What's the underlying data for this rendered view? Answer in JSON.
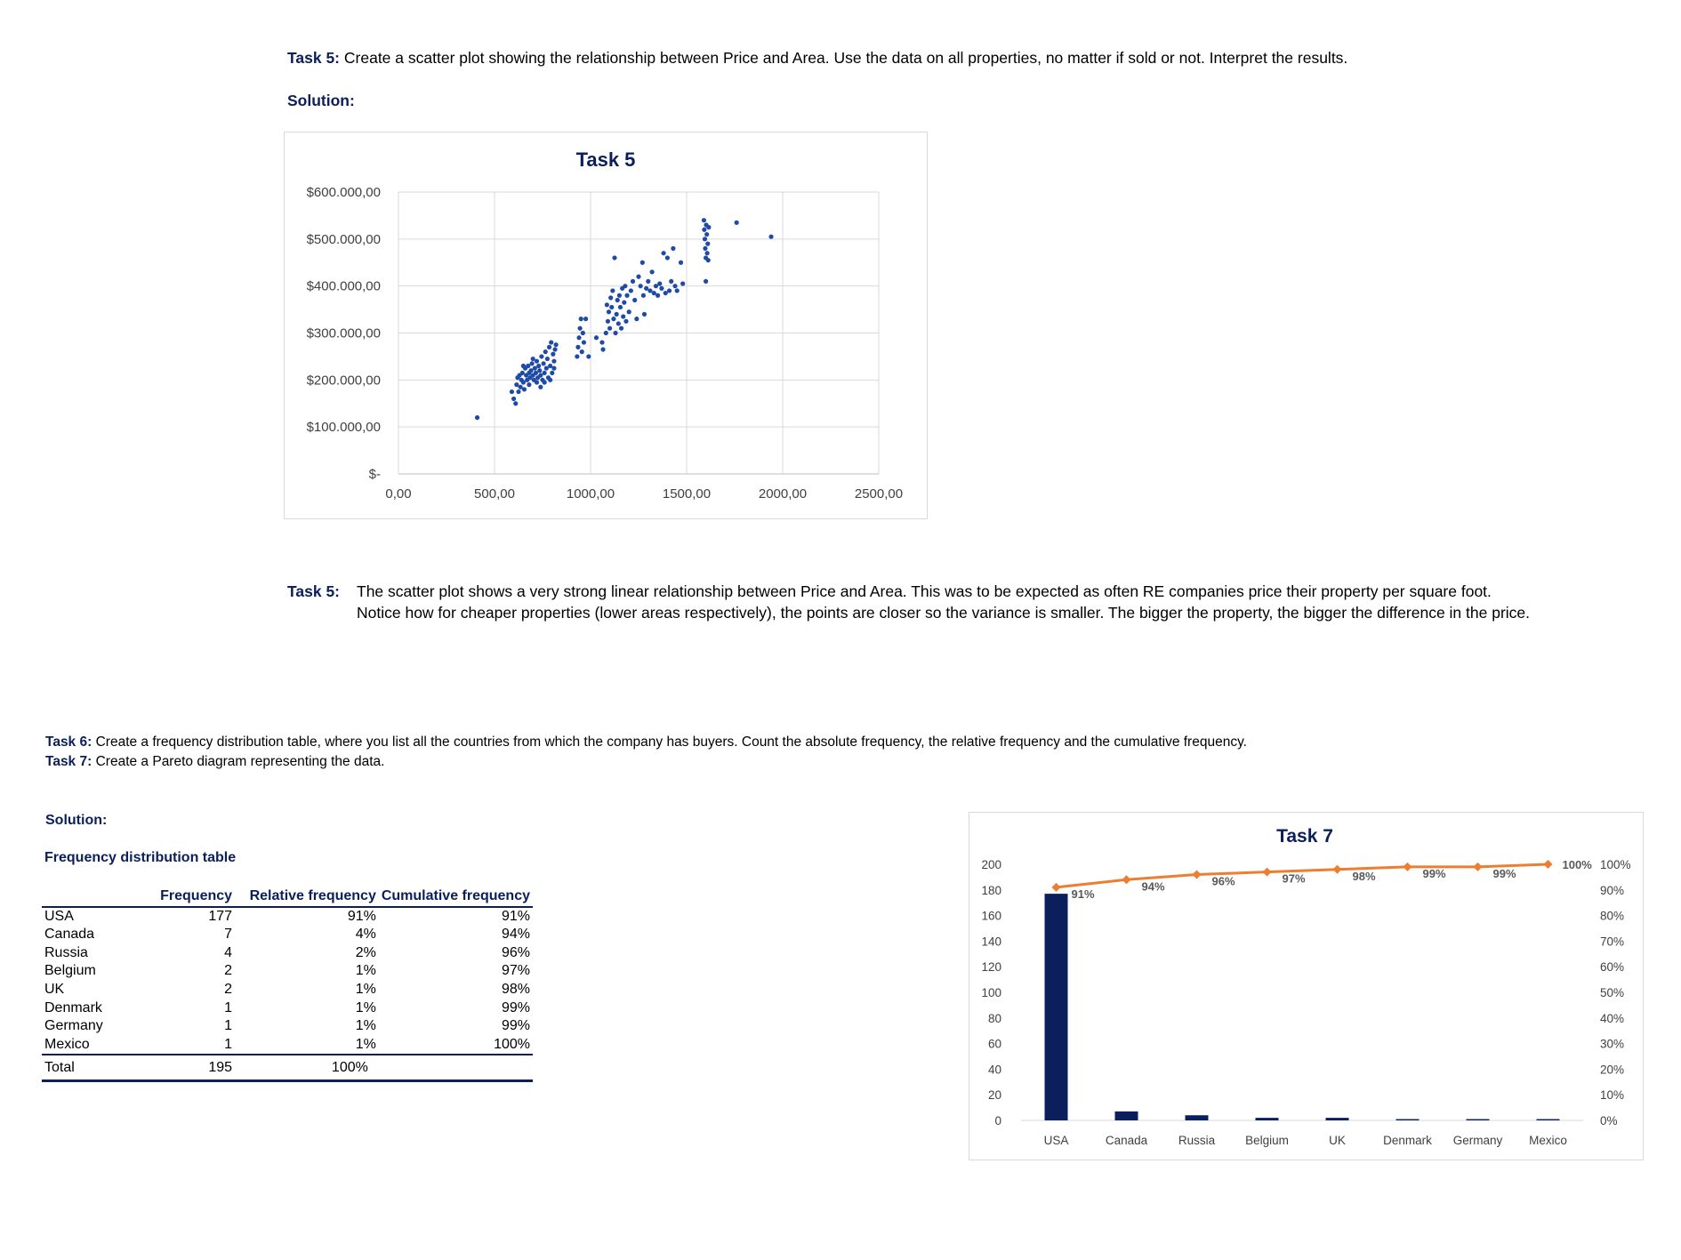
{
  "task5": {
    "label": "Task 5:",
    "text": "Create a scatter plot showing the relationship between Price and Area. Use the data on all properties, no matter if sold or not. Interpret the results.",
    "solution_label": "Solution:",
    "interp_label": "Task 5:",
    "interp_line1": "The scatter plot shows a very strong linear relationship between Price and Area. This was to be expected as often RE companies price their property per square foot.",
    "interp_line2": "Notice how for cheaper properties (lower areas respectively), the points are closer so the variance is smaller. The bigger the property, the bigger the difference in the price."
  },
  "task6": {
    "label": "Task 6:",
    "text": "Create a frequency distribution table, where you list all the countries from which the company has buyers. Count the absolute frequency, the relative frequency and the cumulative frequency."
  },
  "task7": {
    "label": "Task 7:",
    "text": "Create a Pareto diagram representing the data."
  },
  "solution2_label": "Solution:",
  "freq_table": {
    "title": "Frequency distribution table",
    "headers": [
      "",
      "Frequency",
      "Relative frequency",
      "Cumulative frequency"
    ],
    "rows": [
      [
        "USA",
        "177",
        "91%",
        "91%"
      ],
      [
        "Canada",
        "7",
        "4%",
        "94%"
      ],
      [
        "Russia",
        "4",
        "2%",
        "96%"
      ],
      [
        "Belgium",
        "2",
        "1%",
        "97%"
      ],
      [
        "UK",
        "2",
        "1%",
        "98%"
      ],
      [
        "Denmark",
        "1",
        "1%",
        "99%"
      ],
      [
        "Germany",
        "1",
        "1%",
        "99%"
      ],
      [
        "Mexico",
        "1",
        "1%",
        "100%"
      ]
    ],
    "total": [
      "Total",
      "195",
      "100%",
      ""
    ]
  },
  "colors": {
    "navy": "#0b1f5c",
    "scatter_point": "#1f4aa8",
    "bar": "#0b1f5c",
    "line": "#ed7d31"
  },
  "chart_data": [
    {
      "type": "scatter",
      "title": "Task 5",
      "xlabel": "",
      "ylabel": "",
      "xlim": [
        0,
        2500
      ],
      "ylim": [
        0,
        600000
      ],
      "x_ticks": [
        "0,00",
        "500,00",
        "1000,00",
        "1500,00",
        "2000,00",
        "2500,00"
      ],
      "y_ticks": [
        "$-",
        "$100.000,00",
        "$200.000,00",
        "$300.000,00",
        "$400.000,00",
        "$500.000,00",
        "$600.000,00"
      ],
      "grid": true,
      "points": [
        [
          410,
          120000
        ],
        [
          590,
          175000
        ],
        [
          600,
          160000
        ],
        [
          610,
          150000
        ],
        [
          615,
          190000
        ],
        [
          620,
          205000
        ],
        [
          625,
          175000
        ],
        [
          630,
          210000
        ],
        [
          635,
          185000
        ],
        [
          640,
          200000
        ],
        [
          645,
          215000
        ],
        [
          650,
          195000
        ],
        [
          655,
          180000
        ],
        [
          660,
          225000
        ],
        [
          665,
          210000
        ],
        [
          670,
          200000
        ],
        [
          675,
          230000
        ],
        [
          680,
          215000
        ],
        [
          685,
          205000
        ],
        [
          690,
          220000
        ],
        [
          695,
          235000
        ],
        [
          700,
          210000
        ],
        [
          705,
          200000
        ],
        [
          710,
          225000
        ],
        [
          715,
          215000
        ],
        [
          720,
          240000
        ],
        [
          725,
          205000
        ],
        [
          730,
          230000
        ],
        [
          735,
          220000
        ],
        [
          740,
          210000
        ],
        [
          745,
          250000
        ],
        [
          750,
          200000
        ],
        [
          755,
          235000
        ],
        [
          760,
          215000
        ],
        [
          765,
          260000
        ],
        [
          770,
          225000
        ],
        [
          775,
          245000
        ],
        [
          780,
          205000
        ],
        [
          785,
          270000
        ],
        [
          790,
          230000
        ],
        [
          795,
          280000
        ],
        [
          800,
          215000
        ],
        [
          805,
          255000
        ],
        [
          810,
          240000
        ],
        [
          815,
          265000
        ],
        [
          650,
          230000
        ],
        [
          700,
          245000
        ],
        [
          720,
          195000
        ],
        [
          760,
          195000
        ],
        [
          790,
          200000
        ],
        [
          810,
          225000
        ],
        [
          740,
          185000
        ],
        [
          680,
          190000
        ],
        [
          820,
          275000
        ],
        [
          930,
          250000
        ],
        [
          935,
          270000
        ],
        [
          940,
          290000
        ],
        [
          945,
          310000
        ],
        [
          950,
          330000
        ],
        [
          955,
          260000
        ],
        [
          960,
          300000
        ],
        [
          965,
          280000
        ],
        [
          975,
          330000
        ],
        [
          990,
          250000
        ],
        [
          1030,
          290000
        ],
        [
          1060,
          280000
        ],
        [
          1065,
          265000
        ],
        [
          1080,
          300000
        ],
        [
          1085,
          360000
        ],
        [
          1090,
          325000
        ],
        [
          1095,
          345000
        ],
        [
          1100,
          310000
        ],
        [
          1105,
          375000
        ],
        [
          1110,
          355000
        ],
        [
          1115,
          390000
        ],
        [
          1120,
          330000
        ],
        [
          1125,
          460000
        ],
        [
          1130,
          300000
        ],
        [
          1135,
          340000
        ],
        [
          1140,
          370000
        ],
        [
          1145,
          320000
        ],
        [
          1150,
          380000
        ],
        [
          1155,
          355000
        ],
        [
          1160,
          310000
        ],
        [
          1165,
          395000
        ],
        [
          1170,
          335000
        ],
        [
          1175,
          365000
        ],
        [
          1180,
          400000
        ],
        [
          1185,
          325000
        ],
        [
          1190,
          380000
        ],
        [
          1200,
          345000
        ],
        [
          1210,
          390000
        ],
        [
          1220,
          410000
        ],
        [
          1230,
          370000
        ],
        [
          1240,
          330000
        ],
        [
          1250,
          420000
        ],
        [
          1260,
          400000
        ],
        [
          1270,
          450000
        ],
        [
          1275,
          380000
        ],
        [
          1280,
          340000
        ],
        [
          1290,
          395000
        ],
        [
          1300,
          410000
        ],
        [
          1310,
          390000
        ],
        [
          1320,
          430000
        ],
        [
          1330,
          385000
        ],
        [
          1340,
          400000
        ],
        [
          1350,
          380000
        ],
        [
          1360,
          405000
        ],
        [
          1370,
          395000
        ],
        [
          1380,
          470000
        ],
        [
          1390,
          385000
        ],
        [
          1400,
          460000
        ],
        [
          1410,
          390000
        ],
        [
          1420,
          410000
        ],
        [
          1430,
          480000
        ],
        [
          1440,
          400000
        ],
        [
          1450,
          390000
        ],
        [
          1470,
          450000
        ],
        [
          1480,
          405000
        ],
        [
          1600,
          410000
        ],
        [
          1590,
          540000
        ],
        [
          1592,
          520000
        ],
        [
          1595,
          500000
        ],
        [
          1597,
          480000
        ],
        [
          1600,
          460000
        ],
        [
          1602,
          530000
        ],
        [
          1605,
          510000
        ],
        [
          1607,
          470000
        ],
        [
          1610,
          490000
        ],
        [
          1612,
          455000
        ],
        [
          1615,
          525000
        ],
        [
          1760,
          535000
        ],
        [
          1940,
          505000
        ]
      ]
    },
    {
      "type": "bar",
      "title": "Task 7",
      "xlabel": "",
      "ylabel": "",
      "categories": [
        "USA",
        "Canada",
        "Russia",
        "Belgium",
        "UK",
        "Denmark",
        "Germany",
        "Mexico"
      ],
      "ylim": [
        0,
        200
      ],
      "y2lim": [
        0,
        100
      ],
      "y_ticks": [
        "0",
        "20",
        "40",
        "60",
        "80",
        "100",
        "120",
        "140",
        "160",
        "180",
        "200"
      ],
      "y2_ticks": [
        "0%",
        "10%",
        "20%",
        "30%",
        "40%",
        "50%",
        "60%",
        "70%",
        "80%",
        "90%",
        "100%"
      ],
      "series": [
        {
          "values": [
            177,
            7,
            4,
            2,
            2,
            1,
            1,
            1
          ]
        },
        {
          "values": [
            91,
            94,
            96,
            97,
            98,
            99,
            99,
            100
          ],
          "labels": [
            "91%",
            "94%",
            "96%",
            "97%",
            "98%",
            "99%",
            "99%",
            "100%"
          ]
        }
      ]
    }
  ]
}
